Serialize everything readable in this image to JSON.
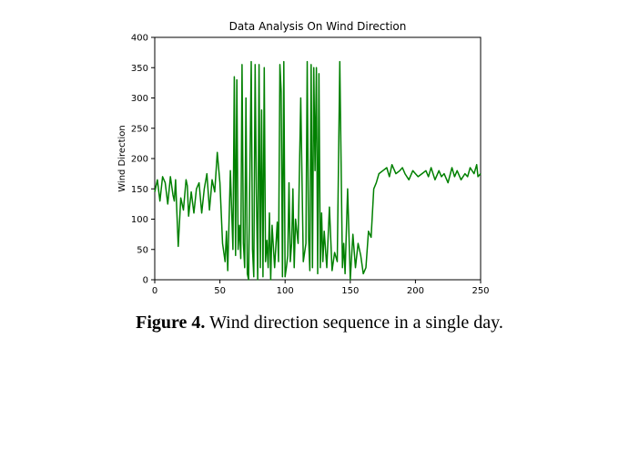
{
  "chart_data": {
    "type": "line",
    "title": "Data Analysis On Wind Direction",
    "xlabel": "",
    "ylabel": "Wind Direction",
    "xlim": [
      0,
      250
    ],
    "ylim": [
      0,
      400
    ],
    "xticks": [
      0,
      50,
      100,
      150,
      200,
      250
    ],
    "yticks": [
      0,
      50,
      100,
      150,
      200,
      250,
      300,
      350,
      400
    ],
    "grid": false,
    "color": "#008000",
    "series": [
      {
        "x": [
          0,
          2,
          4,
          6,
          8,
          10,
          12,
          14,
          15,
          16,
          18,
          20,
          22,
          24,
          25,
          26,
          28,
          30,
          32,
          34,
          36,
          38,
          40,
          42,
          44,
          46,
          48,
          50,
          52,
          54,
          55,
          56,
          58,
          60,
          61,
          62,
          63,
          64,
          65,
          66,
          67,
          68,
          69,
          70,
          71,
          72,
          74,
          75,
          76,
          77,
          78,
          79,
          80,
          81,
          82,
          83,
          84,
          85,
          86,
          87,
          88,
          89,
          90,
          92,
          94,
          95,
          96,
          97,
          98,
          99,
          100,
          101,
          102,
          103,
          104,
          105,
          106,
          107,
          108,
          110,
          112,
          114,
          116,
          117,
          118,
          119,
          120,
          121,
          122,
          123,
          124,
          125,
          126,
          127,
          128,
          129,
          130,
          132,
          134,
          136,
          138,
          140,
          142,
          144,
          145,
          146,
          148,
          150,
          152,
          154,
          156,
          158,
          160,
          162,
          164,
          166,
          168,
          170,
          172,
          175,
          178,
          180,
          182,
          185,
          188,
          190,
          192,
          195,
          198,
          200,
          202,
          205,
          208,
          210,
          212,
          215,
          218,
          220,
          222,
          225,
          228,
          230,
          232,
          235,
          238,
          240,
          242,
          245,
          247,
          248,
          250
        ],
        "y": [
          145,
          165,
          130,
          170,
          160,
          125,
          170,
          140,
          130,
          165,
          55,
          135,
          115,
          165,
          155,
          105,
          145,
          110,
          150,
          160,
          110,
          150,
          175,
          115,
          165,
          145,
          210,
          160,
          60,
          30,
          80,
          15,
          180,
          50,
          335,
          40,
          330,
          50,
          90,
          35,
          355,
          60,
          20,
          300,
          10,
          0,
          360,
          50,
          5,
          355,
          140,
          0,
          355,
          20,
          280,
          5,
          350,
          30,
          65,
          20,
          110,
          0,
          90,
          20,
          95,
          30,
          355,
          310,
          5,
          360,
          5,
          20,
          40,
          160,
          30,
          60,
          150,
          20,
          100,
          60,
          300,
          30,
          60,
          360,
          70,
          15,
          355,
          20,
          350,
          180,
          350,
          10,
          340,
          20,
          110,
          30,
          80,
          20,
          120,
          15,
          45,
          30,
          360,
          20,
          60,
          10,
          150,
          0,
          75,
          20,
          60,
          40,
          10,
          20,
          80,
          70,
          150,
          160,
          175,
          180,
          185,
          170,
          190,
          175,
          180,
          185,
          175,
          165,
          180,
          175,
          170,
          175,
          180,
          170,
          185,
          165,
          180,
          170,
          175,
          160,
          185,
          170,
          180,
          165,
          175,
          170,
          185,
          175,
          190,
          170,
          175
        ]
      }
    ]
  },
  "caption": {
    "prefix": "Figure 4.",
    "text": "Wind direction sequence in a single day."
  }
}
